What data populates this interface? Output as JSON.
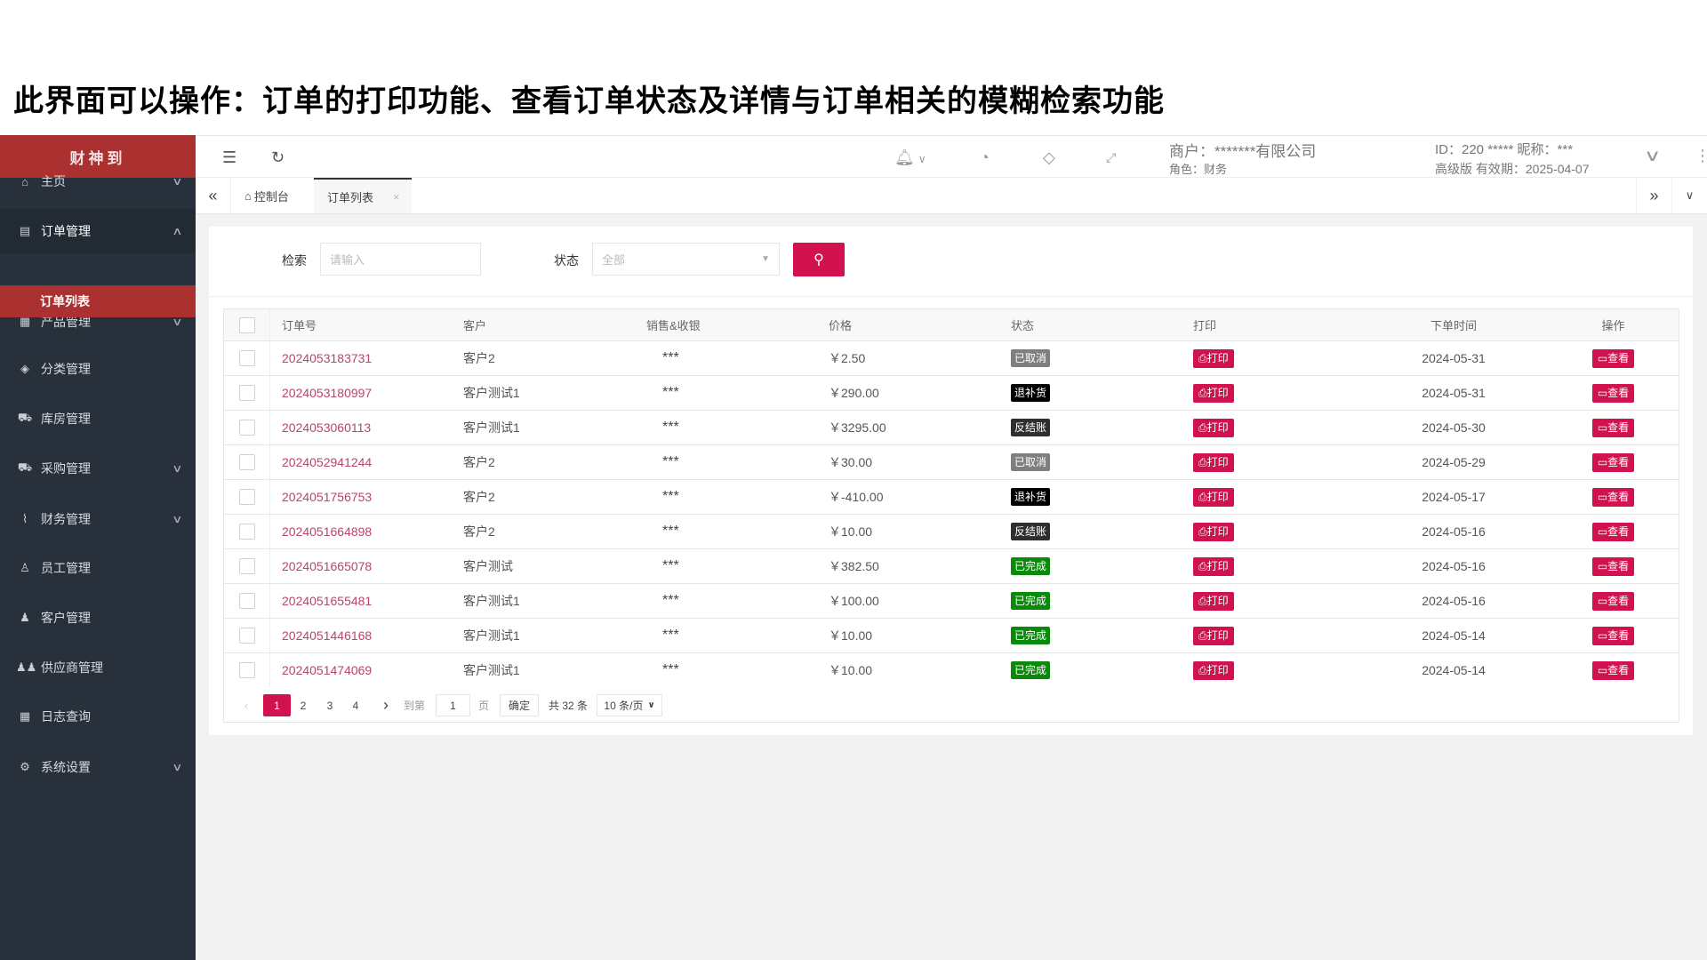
{
  "caption": "此界面可以操作：订单的打印功能、查看订单状态及详情与订单相关的模糊检索功能",
  "brand": "财神到",
  "sidebar": {
    "items": [
      {
        "label": "主页",
        "icon": "home-icon",
        "glyph": "⌂",
        "chevron": "∨"
      },
      {
        "label": "订单管理",
        "icon": "order-icon",
        "glyph": "▤",
        "chevron": "∧"
      },
      {
        "label": "产品管理",
        "icon": "product-icon",
        "glyph": "▦",
        "chevron": "∨"
      },
      {
        "label": "分类管理",
        "icon": "layers-icon",
        "glyph": "◈",
        "chevron": ""
      },
      {
        "label": "库房管理",
        "icon": "cart-icon",
        "glyph": "⛟",
        "chevron": ""
      },
      {
        "label": "采购管理",
        "icon": "cart-icon",
        "glyph": "⛟",
        "chevron": "∨"
      },
      {
        "label": "财务管理",
        "icon": "pulse-icon",
        "glyph": "⌇",
        "chevron": "∨"
      },
      {
        "label": "员工管理",
        "icon": "user-icon",
        "glyph": "♙",
        "chevron": ""
      },
      {
        "label": "客户管理",
        "icon": "person-icon",
        "glyph": "♟",
        "chevron": ""
      },
      {
        "label": "供应商管理",
        "icon": "group-icon",
        "glyph": "♟♟",
        "chevron": ""
      },
      {
        "label": "日志查询",
        "icon": "table-icon",
        "glyph": "▦",
        "chevron": ""
      },
      {
        "label": "系统设置",
        "icon": "gear-icon",
        "glyph": "⚙",
        "chevron": "∨"
      }
    ],
    "sub_item": "订单列表"
  },
  "header": {
    "merchant": "商户：*******有限公司",
    "role": "角色：财务",
    "id_line": "ID：220 *****  昵称：***",
    "plan": "高级版 有效期：2025-04-07"
  },
  "tabs": [
    {
      "label": "控制台"
    },
    {
      "label": "订单列表",
      "active": true
    }
  ],
  "search": {
    "label": "检索",
    "placeholder": "请输入",
    "status_label": "状态",
    "status_value": "全部"
  },
  "table": {
    "headers": [
      "订单号",
      "客户",
      "销售&收银",
      "价格",
      "状态",
      "打印",
      "下单时间",
      "操作"
    ],
    "print_label": "打印",
    "view_label": "查看",
    "rows": [
      {
        "id": "2024053183731",
        "customer": "客户2",
        "sales": "***",
        "price": "￥2.50",
        "status": "已取消",
        "status_color": "#7f7f7f",
        "date": "2024-05-31"
      },
      {
        "id": "2024053180997",
        "customer": "客户测试1",
        "sales": "***",
        "price": "￥290.00",
        "status": "退补货",
        "status_color": "#000000",
        "date": "2024-05-31"
      },
      {
        "id": "2024053060113",
        "customer": "客户测试1",
        "sales": "***",
        "price": "￥3295.00",
        "status": "反结账",
        "status_color": "#2f2f2f",
        "date": "2024-05-30"
      },
      {
        "id": "2024052941244",
        "customer": "客户2",
        "sales": "***",
        "price": "￥30.00",
        "status": "已取消",
        "status_color": "#7f7f7f",
        "date": "2024-05-29"
      },
      {
        "id": "2024051756753",
        "customer": "客户2",
        "sales": "***",
        "price": "￥-410.00",
        "status": "退补货",
        "status_color": "#000000",
        "date": "2024-05-17"
      },
      {
        "id": "2024051664898",
        "customer": "客户2",
        "sales": "***",
        "price": "￥10.00",
        "status": "反结账",
        "status_color": "#2f2f2f",
        "date": "2024-05-16"
      },
      {
        "id": "2024051665078",
        "customer": "客户测试",
        "sales": "***",
        "price": "￥382.50",
        "status": "已完成",
        "status_color": "#0a8a0a",
        "date": "2024-05-16"
      },
      {
        "id": "2024051655481",
        "customer": "客户测试1",
        "sales": "***",
        "price": "￥100.00",
        "status": "已完成",
        "status_color": "#0a8a0a",
        "date": "2024-05-16"
      },
      {
        "id": "2024051446168",
        "customer": "客户测试1",
        "sales": "***",
        "price": "￥10.00",
        "status": "已完成",
        "status_color": "#0a8a0a",
        "date": "2024-05-14"
      },
      {
        "id": "2024051474069",
        "customer": "客户测试1",
        "sales": "***",
        "price": "￥10.00",
        "status": "已完成",
        "status_color": "#0a8a0a",
        "date": "2024-05-14"
      }
    ]
  },
  "pagination": {
    "pages": [
      "1",
      "2",
      "3",
      "4"
    ],
    "current": "1",
    "goto_label": "到第",
    "goto_value": "1",
    "page_unit": "页",
    "confirm": "确定",
    "total": "共 32 条",
    "page_size": "10 条/页"
  },
  "colors": {
    "brand": "#ab3131",
    "accent": "#d2114f",
    "sidebar": "#28313b"
  }
}
